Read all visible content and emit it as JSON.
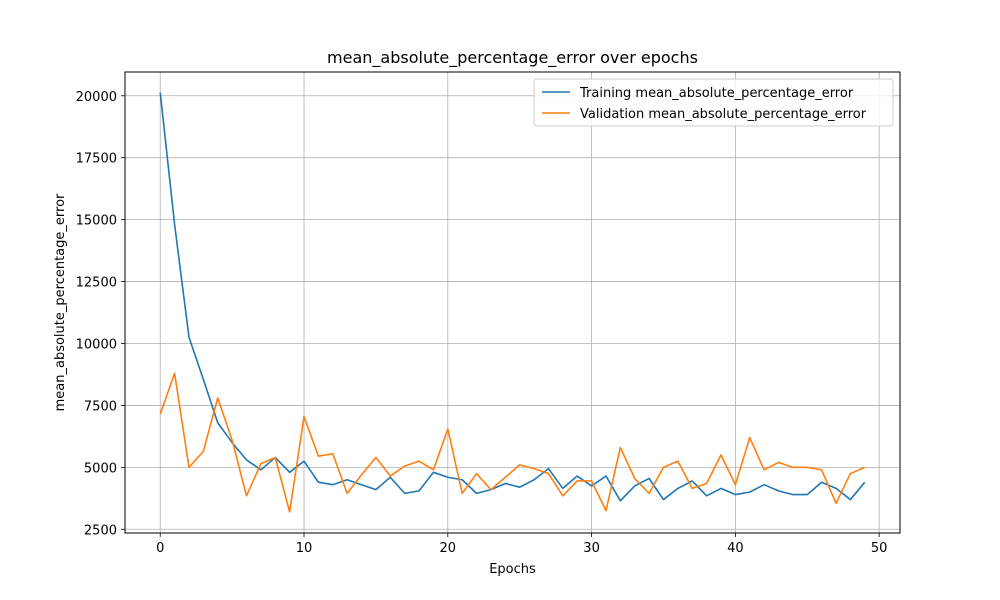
{
  "chart_data": {
    "type": "line",
    "title": "mean_absolute_percentage_error over epochs",
    "xlabel": "Epochs",
    "ylabel": "mean_absolute_percentage_error",
    "xlim": [
      -2.45,
      51.45
    ],
    "ylim": [
      2350,
      20960
    ],
    "xticks": [
      0,
      10,
      20,
      30,
      40,
      50
    ],
    "yticks": [
      2500,
      5000,
      7500,
      10000,
      12500,
      15000,
      17500,
      20000
    ],
    "grid": true,
    "legend_position": "upper right",
    "x": [
      0,
      1,
      2,
      3,
      4,
      5,
      6,
      7,
      8,
      9,
      10,
      11,
      12,
      13,
      14,
      15,
      16,
      17,
      18,
      19,
      20,
      21,
      22,
      23,
      24,
      25,
      26,
      27,
      28,
      29,
      30,
      31,
      32,
      33,
      34,
      35,
      36,
      37,
      38,
      39,
      40,
      41,
      42,
      43,
      44,
      45,
      46,
      47,
      48,
      49
    ],
    "series": [
      {
        "name": "Training mean_absolute_percentage_error",
        "color": "#1f77b4",
        "values": [
          20130,
          14800,
          10250,
          8550,
          6800,
          6000,
          5300,
          4900,
          5400,
          4800,
          5250,
          4400,
          4300,
          4500,
          4300,
          4100,
          4600,
          3950,
          4050,
          4800,
          4600,
          4500,
          3950,
          4100,
          4350,
          4200,
          4500,
          4950,
          4150,
          4650,
          4250,
          4650,
          3650,
          4250,
          4550,
          3700,
          4150,
          4450,
          3850,
          4150,
          3900,
          4000,
          4300,
          4050,
          3900,
          3900,
          4400,
          4150,
          3700,
          4400
        ]
      },
      {
        "name": "Validation mean_absolute_percentage_error",
        "color": "#ff7f0e",
        "values": [
          7150,
          8800,
          5000,
          5650,
          7800,
          6100,
          3850,
          5150,
          5400,
          3200,
          7050,
          5450,
          5550,
          3950,
          4700,
          5400,
          4650,
          5050,
          5250,
          4900,
          6550,
          3950,
          4750,
          4100,
          4600,
          5100,
          4950,
          4750,
          3850,
          4450,
          4450,
          3250,
          5800,
          4550,
          3950,
          5000,
          5250,
          4150,
          4350,
          5500,
          4300,
          6200,
          4900,
          5200,
          5000,
          5000,
          4900,
          3550,
          4750,
          5000
        ]
      }
    ]
  }
}
